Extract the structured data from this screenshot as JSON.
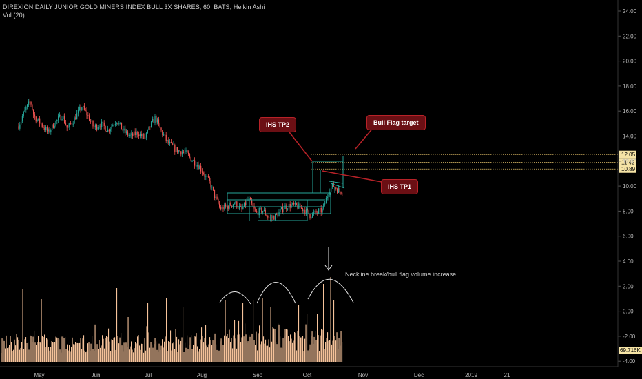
{
  "header": {
    "title": "DIREXION DAILY JUNIOR GOLD MINERS INDEX BULL 3X SHARES, 60, BATS, Heikin Ashi",
    "indicator": "Vol (20)"
  },
  "annotations": {
    "ihs_tp2": "IHS TP2",
    "bull_flag": "Bull Flag target",
    "ihs_tp1": "IHS TP1",
    "volume_note": "Neckline break/bull flag volume increase"
  },
  "colors": {
    "background": "#000000",
    "candle_up": "#26a69a",
    "candle_down": "#ef5350",
    "volume": "#f5c29a",
    "pattern": "#26a69a",
    "target_line": "#e8c46a",
    "callout_fill": "#6b0f14",
    "callout_border": "#b82228",
    "axis_text": "#bdbdbd",
    "label_fill": "#f5e3a5"
  },
  "chart_data": {
    "type": "candlestick",
    "title": "DIREXION DAILY JUNIOR GOLD MINERS INDEX BULL 3X SHARES, 60, BATS, Heikin Ashi",
    "y_ticks": [
      "24.00",
      "22.00",
      "20.00",
      "18.00",
      "16.00",
      "14.00",
      "12.00",
      "10.00",
      "8.00",
      "6.00",
      "4.00",
      "2.00",
      "0.00",
      "-2.00",
      "-4.00"
    ],
    "x_ticks": [
      "May",
      "Jun",
      "Jul",
      "Aug",
      "Sep",
      "Oct",
      "Nov",
      "Dec",
      "2019",
      "21"
    ],
    "price_labels": [
      "12.05",
      "11.42",
      "10.89"
    ],
    "volume_last_label": "69.716K",
    "ylim": [
      -4.8,
      25
    ],
    "price_path": [
      {
        "x": "Apr 19",
        "y": 14.3
      },
      {
        "x": "Apr 23",
        "y": 15.6
      },
      {
        "x": "Apr 26",
        "y": 16.3
      },
      {
        "x": "Apr 28",
        "y": 15.1
      },
      {
        "x": "May 2",
        "y": 14.5
      },
      {
        "x": "May 6",
        "y": 13.8
      },
      {
        "x": "May 10",
        "y": 14.6
      },
      {
        "x": "May 14",
        "y": 15.2
      },
      {
        "x": "May 17",
        "y": 14.1
      },
      {
        "x": "May 21",
        "y": 14.9
      },
      {
        "x": "May 25",
        "y": 15.9
      },
      {
        "x": "May 28",
        "y": 15.3
      },
      {
        "x": "Jun 1",
        "y": 14.2
      },
      {
        "x": "Jun 5",
        "y": 14.5
      },
      {
        "x": "Jun 9",
        "y": 14.0
      },
      {
        "x": "Jun 14",
        "y": 14.8
      },
      {
        "x": "Jun 18",
        "y": 13.9
      },
      {
        "x": "Jun 22",
        "y": 13.5
      },
      {
        "x": "Jun 26",
        "y": 13.8
      },
      {
        "x": "Jun 30",
        "y": 13.3
      },
      {
        "x": "Jul 3",
        "y": 14.3
      },
      {
        "x": "Jul 6",
        "y": 15.0
      },
      {
        "x": "Jul 9",
        "y": 14.0
      },
      {
        "x": "Jul 13",
        "y": 13.0
      },
      {
        "x": "Jul 18",
        "y": 12.4
      },
      {
        "x": "Jul 23",
        "y": 12.2
      },
      {
        "x": "Jul 27",
        "y": 11.6
      },
      {
        "x": "Jul 31",
        "y": 11.1
      },
      {
        "x": "Aug 3",
        "y": 10.4
      },
      {
        "x": "Aug 6",
        "y": 9.8
      },
      {
        "x": "Aug 9",
        "y": 8.6
      },
      {
        "x": "Aug 12",
        "y": 7.7
      },
      {
        "x": "Aug 16",
        "y": 7.9
      },
      {
        "x": "Aug 20",
        "y": 8.2
      },
      {
        "x": "Aug 24",
        "y": 7.6
      },
      {
        "x": "Aug 28",
        "y": 8.5
      },
      {
        "x": "Sep 1",
        "y": 7.4
      },
      {
        "x": "Sep 5",
        "y": 7.6
      },
      {
        "x": "Sep 9",
        "y": 6.9
      },
      {
        "x": "Sep 13",
        "y": 7.2
      },
      {
        "x": "Sep 17",
        "y": 7.8
      },
      {
        "x": "Sep 21",
        "y": 8.0
      },
      {
        "x": "Sep 25",
        "y": 7.9
      },
      {
        "x": "Sep 29",
        "y": 7.6
      },
      {
        "x": "Oct 2",
        "y": 7.2
      },
      {
        "x": "Oct 6",
        "y": 7.4
      },
      {
        "x": "Oct 9",
        "y": 7.6
      },
      {
        "x": "Oct 11",
        "y": 8.4
      },
      {
        "x": "Oct 13",
        "y": 9.3
      },
      {
        "x": "Oct 15",
        "y": 9.6
      },
      {
        "x": "Oct 17",
        "y": 9.3
      },
      {
        "x": "Oct 19",
        "y": 9.1
      },
      {
        "x": "Oct 21",
        "y": 9.2
      }
    ],
    "levels": [
      {
        "label": "12.05",
        "y": 12.05
      },
      {
        "label": "11.42",
        "y": 11.42
      },
      {
        "label": "10.89",
        "y": 10.89
      }
    ]
  }
}
